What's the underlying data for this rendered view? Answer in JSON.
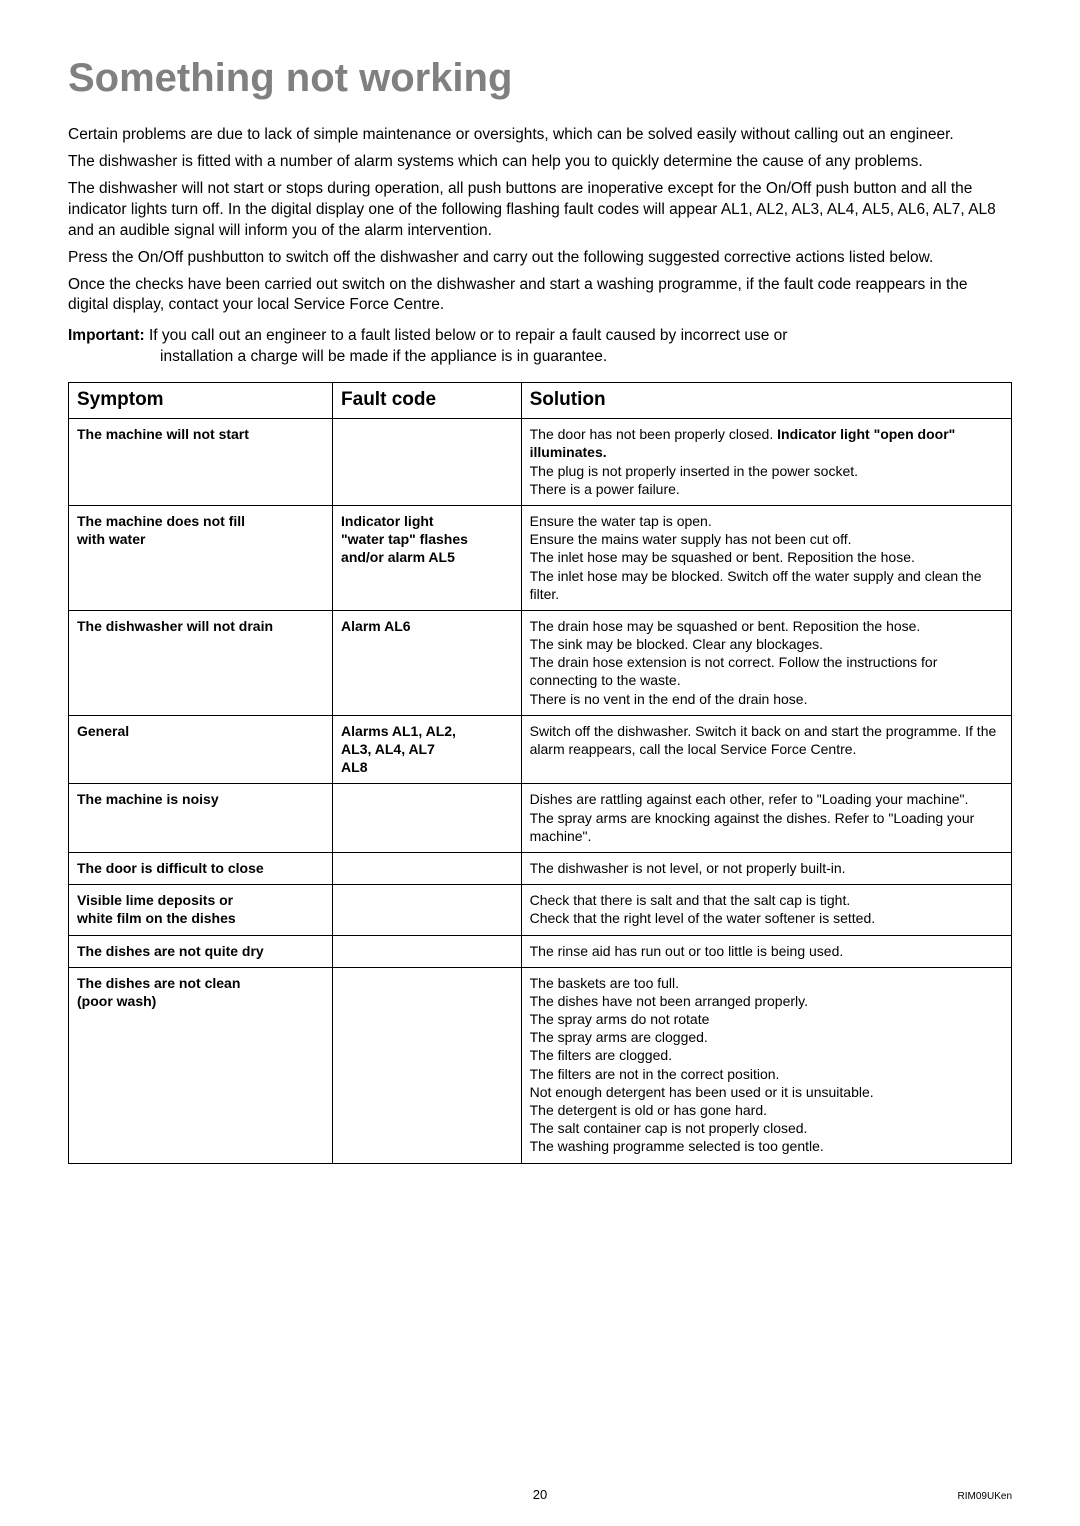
{
  "title": "Something not working",
  "intro": {
    "p1": "Certain problems are due to lack of simple maintenance or oversights, which can be solved easily without calling out an engineer.",
    "p2": "The dishwasher is fitted with a number of alarm systems which can help you to quickly determine the cause of any problems.",
    "p3": "The dishwasher will not start or stops during operation, all push buttons are inoperative except for the On/Off push button and all the indicator lights turn off. In the digital display one of the following flashing fault codes will appear AL1, AL2, AL3, AL4, AL5, AL6, AL7, AL8 and an audible signal will inform you of the alarm intervention.",
    "p4": "Press the On/Off pushbutton to switch off the dishwasher and carry out the following suggested corrective actions listed below.",
    "p5": "Once the checks have been carried out switch on the dishwasher and start a washing programme, if the fault code reappears in the digital display, contact your local Service Force Centre."
  },
  "important": {
    "label": "Important:",
    "text1": "If you call out an engineer to a fault listed below or to repair a fault caused by incorrect use or",
    "text2": "installation a charge will be made if the appliance is in guarantee."
  },
  "headers": {
    "symptom": "Symptom",
    "fault": "Fault code",
    "solution": "Solution"
  },
  "rows": {
    "r0": {
      "symptom": "The machine will not start",
      "fault": "",
      "sol_a": "The door has not been properly closed. ",
      "sol_a_bold": "Indicator light \"open door\" illuminates.",
      "sol_b": "The plug is not properly inserted in the power socket.",
      "sol_c": "There is a power failure."
    },
    "r1": {
      "sym_a": "The machine does not fill",
      "sym_b": "with water",
      "fault_a": "Indicator light",
      "fault_b": "\"water tap\" flashes",
      "fault_c": "and/or alarm AL5",
      "sol_a": "Ensure the water tap is open.",
      "sol_b": "Ensure the mains water supply has not been cut off.",
      "sol_c": "The inlet hose may be squashed or bent. Reposition the hose.",
      "sol_d": "The inlet hose may be blocked. Switch off the water supply and clean the filter."
    },
    "r2": {
      "symptom": "The dishwasher will not drain",
      "fault": "Alarm AL6",
      "sol_a": "The drain hose may be squashed or bent. Reposition the hose.",
      "sol_b": "The sink may be blocked. Clear any blockages.",
      "sol_c": "The drain hose extension is not correct. Follow the instructions for connecting to the waste.",
      "sol_d": "There is no vent in the end of the drain hose."
    },
    "r3": {
      "symptom": "General",
      "fault_a": "Alarms AL1, AL2,",
      "fault_b": "AL3, AL4, AL7",
      "fault_c": "AL8",
      "sol_a": "Switch off the dishwasher. Switch it back on and start the programme. If the alarm reappears, call the local Service Force Centre."
    },
    "r4": {
      "symptom": "The machine is noisy",
      "fault": "",
      "sol_a": "Dishes are rattling against each other, refer to \"Loading your machine\".",
      "sol_b": "The spray arms are knocking against the dishes. Refer to \"Loading your machine\"."
    },
    "r5": {
      "symptom": "The door is difficult to close",
      "fault": "",
      "sol_a": "The dishwasher is not level, or not properly built-in."
    },
    "r6": {
      "sym_a": "Visible lime deposits or",
      "sym_b": "white film on the dishes",
      "fault": "",
      "sol_a": "Check that there is salt and that the salt cap is tight.",
      "sol_b": "Check that the right level of the water softener is setted."
    },
    "r7": {
      "symptom": "The dishes are not quite dry",
      "fault": "",
      "sol_a": "The rinse aid has run out or too little is being used."
    },
    "r8": {
      "sym_a": "The dishes are not clean",
      "sym_b": "(poor wash)",
      "fault": "",
      "sol_a": "The baskets are too full.",
      "sol_b": "The dishes have not been arranged properly.",
      "sol_c": "The spray arms do not rotate",
      "sol_d": "The spray arms are clogged.",
      "sol_e": "The filters are clogged.",
      "sol_f": "The filters are not in the correct position.",
      "sol_g": "Not enough detergent has been used or it is unsuitable.",
      "sol_h": "The detergent is old or has gone hard.",
      "sol_i": "The salt container cap is not properly closed.",
      "sol_j": "The washing programme selected is too gentle."
    }
  },
  "footer": {
    "page": "20",
    "code": "RIM09UKen"
  }
}
